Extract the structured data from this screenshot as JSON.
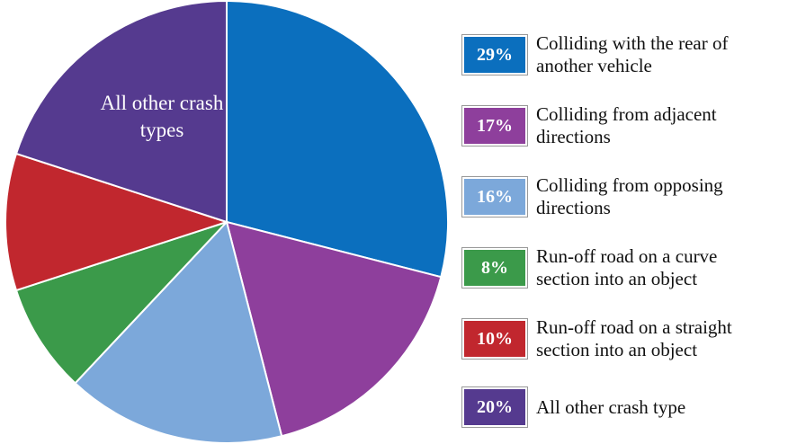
{
  "chart_data": {
    "type": "pie",
    "categories": [
      "Colliding with the rear of another vehicle",
      "Colliding from adjacent directions",
      "Colliding from opposing directions",
      "Run-off road on a curve section into an object",
      "Run-off road on a straight section into an object",
      "All other crash type"
    ],
    "values": [
      29,
      17,
      16,
      8,
      10,
      20
    ],
    "value_labels": [
      "29%",
      "17%",
      "16%",
      "8%",
      "10%",
      "20%"
    ],
    "colors": [
      "#0b6fbe",
      "#8e3f9c",
      "#7ca8da",
      "#3b9a4a",
      "#c1272e",
      "#553a8f"
    ],
    "annotation": "All other crash types"
  }
}
